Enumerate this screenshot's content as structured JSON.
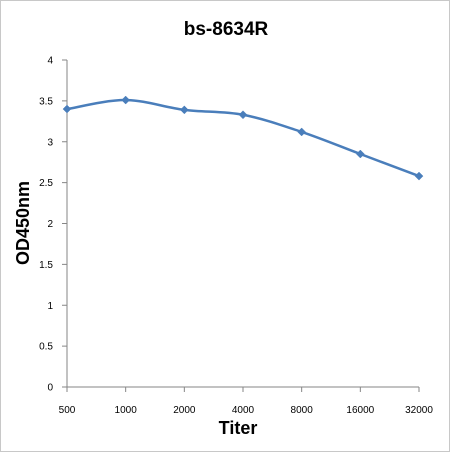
{
  "chart_data": {
    "type": "line",
    "title": "bs-8634R",
    "xlabel": "Titer",
    "ylabel": "OD450nm",
    "categories": [
      "500",
      "1000",
      "2000",
      "4000",
      "8000",
      "16000",
      "32000"
    ],
    "series": [
      {
        "values": [
          3.4,
          3.51,
          3.39,
          3.33,
          3.12,
          2.85,
          2.58
        ],
        "color": "#4a7ebb",
        "marker": "diamond"
      }
    ],
    "ylim": [
      0,
      4
    ],
    "yticks": [
      "0",
      "0.5",
      "1",
      "1.5",
      "2",
      "2.5",
      "3",
      "3.5",
      "4"
    ],
    "grid": false,
    "legend": "none"
  }
}
